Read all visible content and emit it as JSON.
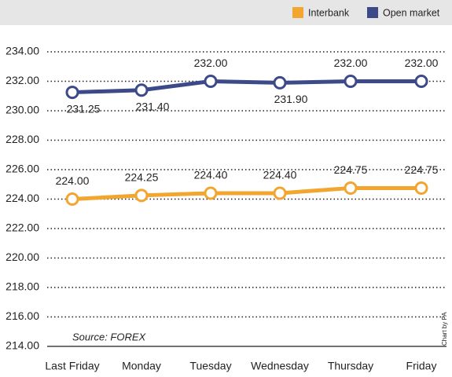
{
  "chart_data": {
    "type": "line",
    "categories": [
      "Last Friday",
      "Monday",
      "Tuesday",
      "Wednesday",
      "Thursday",
      "Friday"
    ],
    "series": [
      {
        "name": "Interbank",
        "color": "#f2a630",
        "values": [
          224.0,
          224.25,
          224.4,
          224.4,
          224.75,
          224.75
        ],
        "value_labels": [
          "224.00",
          "224.25",
          "224.40",
          "224.40",
          "224.75",
          "224.75"
        ]
      },
      {
        "name": "Open market",
        "color": "#3d4a8a",
        "values": [
          231.25,
          231.4,
          232.0,
          231.9,
          232.0,
          232.0
        ],
        "value_labels": [
          "231.25",
          "231.40",
          "232.00",
          "231.90",
          "232.00",
          "232.00"
        ]
      }
    ],
    "ylim": [
      214,
      234
    ],
    "yticks": [
      {
        "value": 214,
        "label": "214.00"
      },
      {
        "value": 216,
        "label": "216.00"
      },
      {
        "value": 218,
        "label": "218.00"
      },
      {
        "value": 220,
        "label": "220.00"
      },
      {
        "value": 222,
        "label": "222.00"
      },
      {
        "value": 224,
        "label": "224.00"
      },
      {
        "value": 226,
        "label": "226.00"
      },
      {
        "value": 228,
        "label": "228.00"
      },
      {
        "value": 230,
        "label": "230.00"
      },
      {
        "value": 232,
        "label": "232.00"
      },
      {
        "value": 234,
        "label": "234.00"
      }
    ],
    "grid": true,
    "legend": "top-right",
    "source": "Source: FOREX",
    "credit": "Chart by PA"
  }
}
